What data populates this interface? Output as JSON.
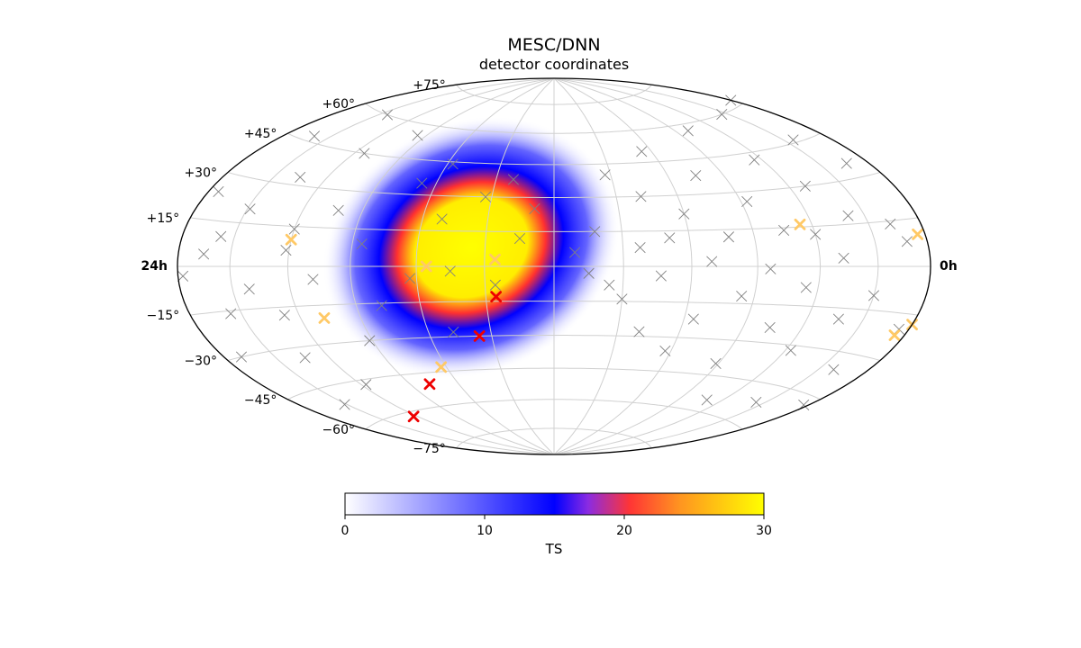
{
  "chart_data": {
    "type": "scatter",
    "projection": "hammer-aitoff",
    "title": "MESC/DNN",
    "subtitle": "detector coordinates",
    "lon_labels": {
      "left": "24h",
      "right": "0h"
    },
    "lat_ticks": [
      -75,
      -60,
      -45,
      -30,
      -15,
      15,
      30,
      45,
      60,
      75
    ],
    "lat_tick_labels": [
      "−75°",
      "−60°",
      "−45°",
      "−30°",
      "−15°",
      "+15°",
      "+30°",
      "+45°",
      "+60°",
      "+75°"
    ],
    "grid": true,
    "colorbar": {
      "label": "TS",
      "range": [
        0,
        30
      ],
      "ticks": [
        0,
        10,
        20,
        30
      ],
      "tick_labels": [
        "0",
        "10",
        "20",
        "30"
      ],
      "colors": [
        "#ffffff",
        "#0000ff",
        "#ff3030",
        "#ffff00"
      ]
    },
    "ts_map_hotspot": {
      "ra_h": 21.6,
      "dec_deg": 8,
      "peak_ts": 30
    },
    "series": [
      {
        "marker": "x",
        "color": "#808080",
        "points": [
          {
            "ra_h": 22.6,
            "dec": 38
          },
          {
            "ra_h": 20.2,
            "dec": 44
          },
          {
            "ra_h": 17.6,
            "dec": 55
          },
          {
            "ra_h": 14.4,
            "dec": 60
          },
          {
            "ra_h": 12.0,
            "dec": 62
          },
          {
            "ra_h": 9.7,
            "dec": 60
          },
          {
            "ra_h": 6.6,
            "dec": 57
          },
          {
            "ra_h": 3.6,
            "dec": 50
          },
          {
            "ra_h": 1.8,
            "dec": 40
          },
          {
            "ra_h": 16.4,
            "dec": 45
          },
          {
            "ra_h": 13.3,
            "dec": 47
          },
          {
            "ra_h": 10.4,
            "dec": 46
          },
          {
            "ra_h": 7.7,
            "dec": 42
          },
          {
            "ra_h": 5.0,
            "dec": 38
          },
          {
            "ra_h": 2.8,
            "dec": 30
          },
          {
            "ra_h": 19.5,
            "dec": 35
          },
          {
            "ra_h": 15.0,
            "dec": 33
          },
          {
            "ra_h": 11.1,
            "dec": 35
          },
          {
            "ra_h": 8.6,
            "dec": 30
          },
          {
            "ra_h": 6.2,
            "dec": 26
          },
          {
            "ra_h": 4.0,
            "dec": 22
          },
          {
            "ra_h": 1.2,
            "dec": 15
          },
          {
            "ra_h": 17.2,
            "dec": 22
          },
          {
            "ra_h": 14.1,
            "dec": 20
          },
          {
            "ra_h": 12.4,
            "dec": 24
          },
          {
            "ra_h": 9.4,
            "dec": 18
          },
          {
            "ra_h": 7.0,
            "dec": 14
          },
          {
            "ra_h": 5.2,
            "dec": 12
          },
          {
            "ra_h": 2.5,
            "dec": 8
          },
          {
            "ra_h": 18.3,
            "dec": 9
          },
          {
            "ra_h": 15.9,
            "dec": 6
          },
          {
            "ra_h": 13.0,
            "dec": 4
          },
          {
            "ra_h": 11.2,
            "dec": 8
          },
          {
            "ra_h": 8.8,
            "dec": 3
          },
          {
            "ra_h": 6.4,
            "dec": -1
          },
          {
            "ra_h": 4.6,
            "dec": 2
          },
          {
            "ra_h": 3.1,
            "dec": -4
          },
          {
            "ra_h": 1.0,
            "dec": -3
          },
          {
            "ra_h": 16.8,
            "dec": -5
          },
          {
            "ra_h": 14.6,
            "dec": -8
          },
          {
            "ra_h": 12.2,
            "dec": -3
          },
          {
            "ra_h": 10.0,
            "dec": -10
          },
          {
            "ra_h": 7.6,
            "dec": -8
          },
          {
            "ra_h": 5.6,
            "dec": -12
          },
          {
            "ra_h": 2.0,
            "dec": -14
          },
          {
            "ra_h": 18.8,
            "dec": -16
          },
          {
            "ra_h": 15.5,
            "dec": -18
          },
          {
            "ra_h": 13.6,
            "dec": -16
          },
          {
            "ra_h": 11.6,
            "dec": -20
          },
          {
            "ra_h": 9.1,
            "dec": -19
          },
          {
            "ra_h": 6.9,
            "dec": -24
          },
          {
            "ra_h": 4.3,
            "dec": -22
          },
          {
            "ra_h": 2.7,
            "dec": -28
          },
          {
            "ra_h": 17.9,
            "dec": -30
          },
          {
            "ra_h": 15.1,
            "dec": -34
          },
          {
            "ra_h": 12.7,
            "dec": -30
          },
          {
            "ra_h": 10.6,
            "dec": -36
          },
          {
            "ra_h": 8.2,
            "dec": -32
          },
          {
            "ra_h": 5.9,
            "dec": -40
          },
          {
            "ra_h": 3.8,
            "dec": -36
          },
          {
            "ra_h": 16.2,
            "dec": -47
          },
          {
            "ra_h": 13.9,
            "dec": -52
          },
          {
            "ra_h": 11.8,
            "dec": -48
          },
          {
            "ra_h": 9.6,
            "dec": -52
          },
          {
            "ra_h": 7.3,
            "dec": -55
          },
          {
            "ra_h": 20.8,
            "dec": -28
          },
          {
            "ra_h": 19.8,
            "dec": -5
          },
          {
            "ra_h": 20.6,
            "dec": 20
          },
          {
            "ra_h": 23.0,
            "dec": 12
          },
          {
            "ra_h": 22.3,
            "dec": -8
          },
          {
            "ra_h": 21.0,
            "dec": -2
          },
          {
            "ra_h": 23.4,
            "dec": 25
          },
          {
            "ra_h": 21.8,
            "dec": 30
          },
          {
            "ra_h": 0.6,
            "dec": 6
          },
          {
            "ra_h": 1.6,
            "dec": -8
          },
          {
            "ra_h": 3.4,
            "dec": 12
          },
          {
            "ra_h": 8.0,
            "dec": 12
          },
          {
            "ra_h": 10.8,
            "dec": 14
          },
          {
            "ra_h": 13.5,
            "dec": 10
          },
          {
            "ra_h": 16.0,
            "dec": 14
          }
        ]
      },
      {
        "marker": "x",
        "color": "#ffc966",
        "points": [
          {
            "ra_h": 22.3,
            "dec": 3
          },
          {
            "ra_h": 20.3,
            "dec": 0
          },
          {
            "ra_h": 16.0,
            "dec": 10
          },
          {
            "ra_h": 11.7,
            "dec": 10
          },
          {
            "ra_h": 7.6,
            "dec": 16
          },
          {
            "ra_h": 16.8,
            "dec": -20
          },
          {
            "ra_h": 12.0,
            "dec": -18
          },
          {
            "ra_h": 11.6,
            "dec": -22
          },
          {
            "ra_h": 19.8,
            "dec": -43
          }
        ]
      },
      {
        "marker": "x",
        "color": "#ee0000",
        "points": [
          {
            "ra_h": 22.3,
            "dec": -13
          },
          {
            "ra_h": 21.6,
            "dec": -30
          },
          {
            "ra_h": 18.8,
            "dec": -50
          },
          {
            "ra_h": 15.8,
            "dec": -62
          }
        ]
      }
    ]
  }
}
